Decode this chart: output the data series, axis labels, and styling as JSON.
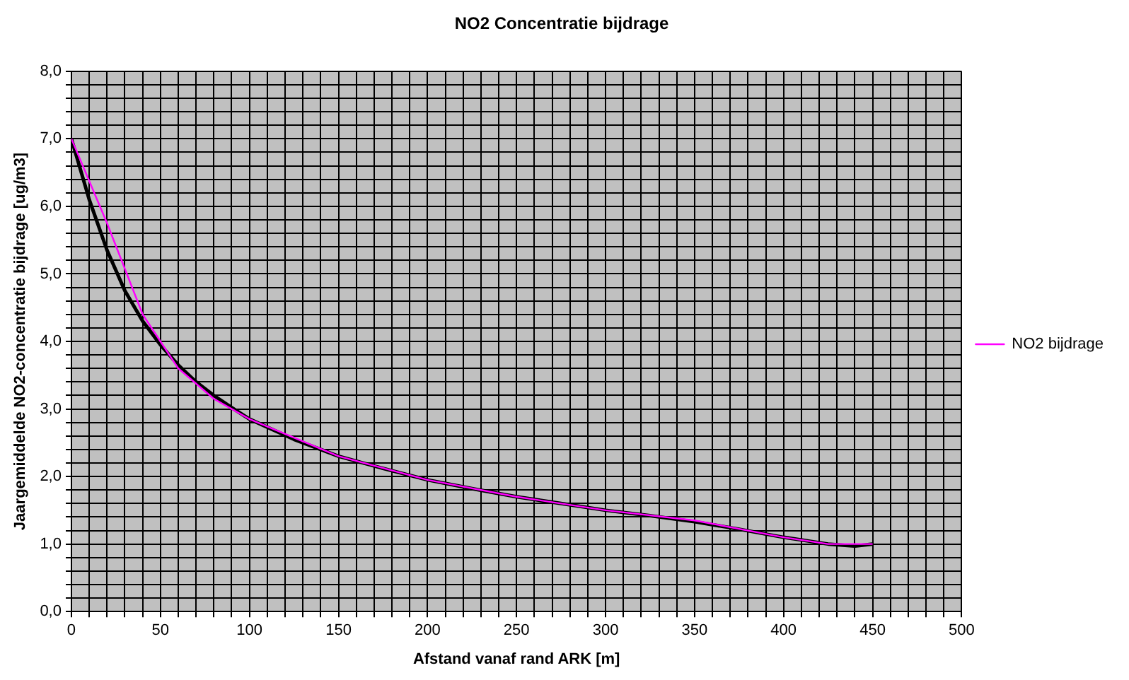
{
  "chart_data": {
    "type": "line",
    "title": "NO2 Concentratie bijdrage",
    "xlabel": "Afstand vanaf rand ARK [m]",
    "ylabel": "Jaargemiddelde NO2-concentratie bijdrage [ug/m3]",
    "xlim": [
      0,
      500
    ],
    "ylim": [
      0,
      8
    ],
    "xticks": [
      0,
      {
        "value": 10,
        "label": null
      },
      {
        "value": 20,
        "label": null
      },
      {
        "value": 30,
        "label": null
      },
      {
        "value": 40,
        "label": null
      },
      50,
      {
        "value": 60,
        "label": null
      },
      {
        "value": 70,
        "label": null
      },
      {
        "value": 80,
        "label": null
      },
      {
        "value": 90,
        "label": null
      },
      100,
      {
        "value": 110,
        "label": null
      },
      {
        "value": 120,
        "label": null
      },
      {
        "value": 130,
        "label": null
      },
      {
        "value": 140,
        "label": null
      },
      150,
      {
        "value": 160,
        "label": null
      },
      {
        "value": 170,
        "label": null
      },
      {
        "value": 180,
        "label": null
      },
      {
        "value": 190,
        "label": null
      },
      200,
      {
        "value": 210,
        "label": null
      },
      {
        "value": 220,
        "label": null
      },
      {
        "value": 230,
        "label": null
      },
      {
        "value": 240,
        "label": null
      },
      250,
      {
        "value": 260,
        "label": null
      },
      {
        "value": 270,
        "label": null
      },
      {
        "value": 280,
        "label": null
      },
      {
        "value": 290,
        "label": null
      },
      300,
      {
        "value": 310,
        "label": null
      },
      {
        "value": 320,
        "label": null
      },
      {
        "value": 330,
        "label": null
      },
      {
        "value": 340,
        "label": null
      },
      350,
      {
        "value": 360,
        "label": null
      },
      {
        "value": 370,
        "label": null
      },
      {
        "value": 380,
        "label": null
      },
      {
        "value": 390,
        "label": null
      },
      400,
      {
        "value": 410,
        "label": null
      },
      {
        "value": 420,
        "label": null
      },
      {
        "value": 430,
        "label": null
      },
      {
        "value": 440,
        "label": null
      },
      450,
      {
        "value": 460,
        "label": null
      },
      {
        "value": 470,
        "label": null
      },
      {
        "value": 480,
        "label": null
      },
      {
        "value": 490,
        "label": null
      },
      500
    ],
    "yticks": [
      {
        "value": 0,
        "label": "0,0"
      },
      {
        "value": 0.2,
        "label": null
      },
      {
        "value": 0.4,
        "label": null
      },
      {
        "value": 0.6,
        "label": null
      },
      {
        "value": 0.8,
        "label": null
      },
      {
        "value": 1,
        "label": "1,0"
      },
      {
        "value": 1.2,
        "label": null
      },
      {
        "value": 1.4,
        "label": null
      },
      {
        "value": 1.6,
        "label": null
      },
      {
        "value": 1.8,
        "label": null
      },
      {
        "value": 2,
        "label": "2,0"
      },
      {
        "value": 2.2,
        "label": null
      },
      {
        "value": 2.4,
        "label": null
      },
      {
        "value": 2.6,
        "label": null
      },
      {
        "value": 2.8,
        "label": null
      },
      {
        "value": 3,
        "label": "3,0"
      },
      {
        "value": 3.2,
        "label": null
      },
      {
        "value": 3.4,
        "label": null
      },
      {
        "value": 3.6,
        "label": null
      },
      {
        "value": 3.8,
        "label": null
      },
      {
        "value": 4,
        "label": "4,0"
      },
      {
        "value": 4.2,
        "label": null
      },
      {
        "value": 4.4,
        "label": null
      },
      {
        "value": 4.6,
        "label": null
      },
      {
        "value": 4.8,
        "label": null
      },
      {
        "value": 5,
        "label": "5,0"
      },
      {
        "value": 5.2,
        "label": null
      },
      {
        "value": 5.4,
        "label": null
      },
      {
        "value": 5.6,
        "label": null
      },
      {
        "value": 5.8,
        "label": null
      },
      {
        "value": 6,
        "label": "6,0"
      },
      {
        "value": 6.2,
        "label": null
      },
      {
        "value": 6.4,
        "label": null
      },
      {
        "value": 6.6,
        "label": null
      },
      {
        "value": 6.8,
        "label": null
      },
      {
        "value": 7,
        "label": "7,0"
      },
      {
        "value": 7.2,
        "label": null
      },
      {
        "value": 7.4,
        "label": null
      },
      {
        "value": 7.6,
        "label": null
      },
      {
        "value": 7.8,
        "label": null
      },
      {
        "value": 8,
        "label": "8,0"
      }
    ],
    "grid": true,
    "legend": "right",
    "marker": "none",
    "line_style": "solid",
    "series": [
      {
        "name": "NO2 bijdrage",
        "color": "#ff00ff",
        "x": [
          0,
          20,
          40,
          50,
          60,
          80,
          100,
          150,
          200,
          250,
          300,
          350,
          400,
          425,
          440,
          450
        ],
        "values": [
          7.0,
          5.75,
          4.4,
          4.0,
          3.6,
          3.15,
          2.85,
          2.3,
          1.95,
          1.7,
          1.5,
          1.35,
          1.1,
          1.0,
          1.0,
          1.0
        ]
      },
      {
        "color": "#000000",
        "x": [
          0,
          10,
          20,
          30,
          40,
          50,
          60,
          70,
          80,
          90,
          100,
          125,
          150,
          175,
          200,
          225,
          250,
          275,
          300,
          325,
          350,
          375,
          400,
          425,
          440,
          450
        ],
        "values": [
          7.0,
          6.1,
          5.35,
          4.75,
          4.3,
          3.95,
          3.65,
          3.4,
          3.2,
          3.02,
          2.85,
          2.55,
          2.3,
          2.12,
          1.95,
          1.82,
          1.7,
          1.6,
          1.5,
          1.42,
          1.33,
          1.22,
          1.1,
          1.0,
          0.97,
          1.0
        ]
      }
    ]
  }
}
